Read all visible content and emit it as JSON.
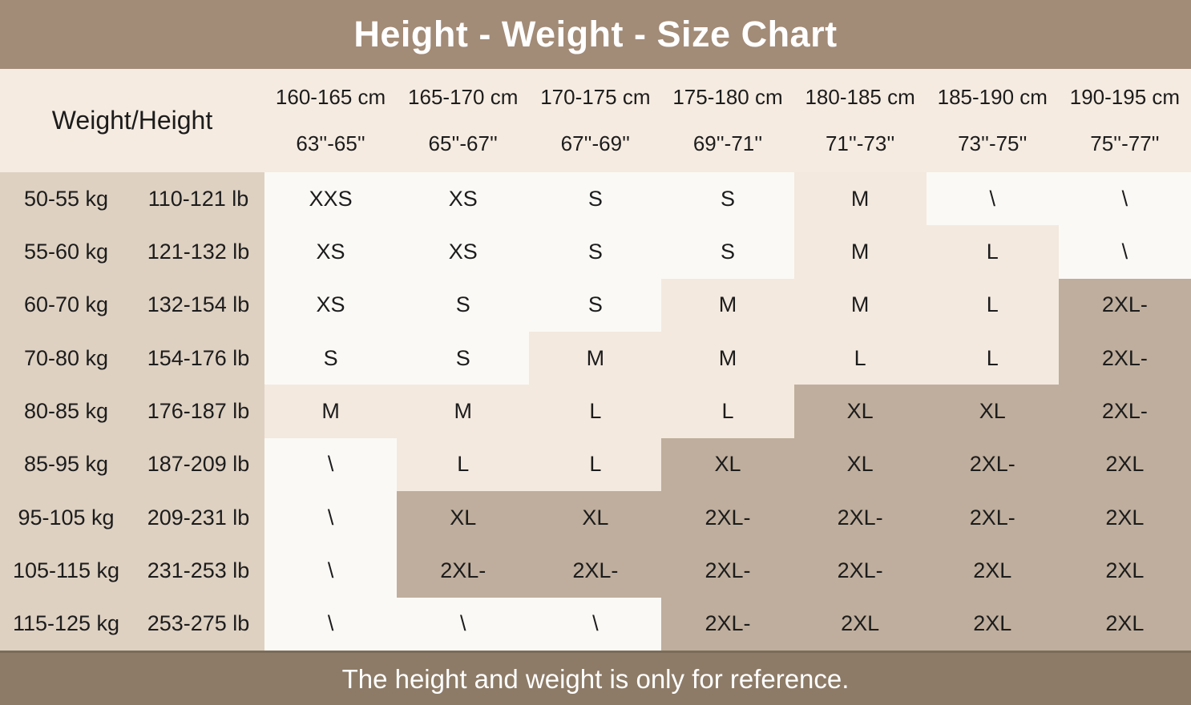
{
  "title": "Height - Weight - Size Chart",
  "footer_note": "The height and weight is only for reference.",
  "colors": {
    "title_bar": "#a28b77",
    "header_band": "#f5ebe1",
    "cell_white": "#fbf9f5",
    "cell_cream": "#f3e9df",
    "cell_dark": "#bfae9d",
    "label_tan": "#ded1c2",
    "footer_bar": "#8d7b67",
    "footer_edge": "#7a6c59",
    "text_dark": "#1c1c1c",
    "text_light": "#ffffff"
  },
  "chart_data": {
    "type": "table",
    "title": "Height - Weight - Size Chart",
    "corner_label": "Weight/Height",
    "footnote": "The height and weight is only for reference.",
    "columns": [
      {
        "cm": "160-165 cm",
        "inch": "63''-65''"
      },
      {
        "cm": "165-170 cm",
        "inch": "65''-67''"
      },
      {
        "cm": "170-175 cm",
        "inch": "67''-69''"
      },
      {
        "cm": "175-180 cm",
        "inch": "69''-71''"
      },
      {
        "cm": "180-185 cm",
        "inch": "71''-73''"
      },
      {
        "cm": "185-190 cm",
        "inch": "73''-75''"
      },
      {
        "cm": "190-195 cm",
        "inch": "75''-77''"
      }
    ],
    "rows": [
      {
        "kg": "50-55 kg",
        "lb": "110-121 lb",
        "sizes": [
          "XXS",
          "XS",
          "S",
          "S",
          "M",
          "\\",
          "\\"
        ],
        "tones": [
          "w",
          "w",
          "w",
          "w",
          "c",
          "w",
          "w"
        ]
      },
      {
        "kg": "55-60 kg",
        "lb": "121-132 lb",
        "sizes": [
          "XS",
          "XS",
          "S",
          "S",
          "M",
          "L",
          "\\"
        ],
        "tones": [
          "w",
          "w",
          "w",
          "w",
          "c",
          "c",
          "w"
        ]
      },
      {
        "kg": "60-70 kg",
        "lb": "132-154 lb",
        "sizes": [
          "XS",
          "S",
          "S",
          "M",
          "M",
          "L",
          "2XL-"
        ],
        "tones": [
          "w",
          "w",
          "w",
          "c",
          "c",
          "c",
          "d"
        ]
      },
      {
        "kg": "70-80 kg",
        "lb": "154-176 lb",
        "sizes": [
          "S",
          "S",
          "M",
          "M",
          "L",
          "L",
          "2XL-"
        ],
        "tones": [
          "w",
          "w",
          "c",
          "c",
          "c",
          "c",
          "d"
        ]
      },
      {
        "kg": "80-85 kg",
        "lb": "176-187 lb",
        "sizes": [
          "M",
          "M",
          "L",
          "L",
          "XL",
          "XL",
          "2XL-"
        ],
        "tones": [
          "c",
          "c",
          "c",
          "c",
          "d",
          "d",
          "d"
        ]
      },
      {
        "kg": "85-95 kg",
        "lb": "187-209 lb",
        "sizes": [
          "\\",
          "L",
          "L",
          "XL",
          "XL",
          "2XL-",
          "2XL"
        ],
        "tones": [
          "w",
          "c",
          "c",
          "d",
          "d",
          "d",
          "d"
        ]
      },
      {
        "kg": "95-105 kg",
        "lb": "209-231 lb",
        "sizes": [
          "\\",
          "XL",
          "XL",
          "2XL-",
          "2XL-",
          "2XL-",
          "2XL"
        ],
        "tones": [
          "w",
          "d",
          "d",
          "d",
          "d",
          "d",
          "d"
        ]
      },
      {
        "kg": "105-115 kg",
        "lb": "231-253 lb",
        "sizes": [
          "\\",
          "2XL-",
          "2XL-",
          "2XL-",
          "2XL-",
          "2XL",
          "2XL"
        ],
        "tones": [
          "w",
          "d",
          "d",
          "d",
          "d",
          "d",
          "d"
        ]
      },
      {
        "kg": "115-125 kg",
        "lb": "253-275 lb",
        "sizes": [
          "\\",
          "\\",
          "\\",
          "2XL-",
          "2XL",
          "2XL",
          "2XL"
        ],
        "tones": [
          "w",
          "w",
          "w",
          "d",
          "d",
          "d",
          "d"
        ]
      }
    ]
  }
}
